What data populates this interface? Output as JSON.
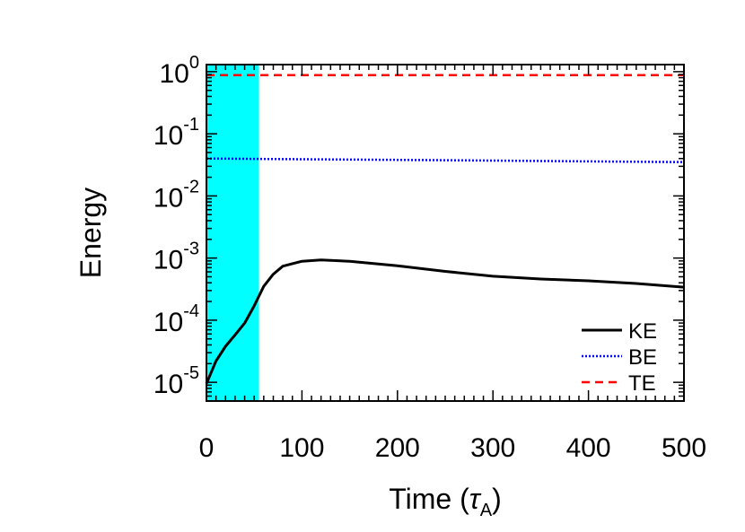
{
  "chart_data": {
    "type": "line",
    "xlabel": "Time (τA)",
    "xlabel_parts": {
      "main": "Time (",
      "symbol": "τ",
      "subscript": "A",
      "close": ")"
    },
    "ylabel": "Energy",
    "xlim": [
      0,
      500
    ],
    "ylim": [
      5e-06,
      1.3
    ],
    "yscale": "log",
    "grid": false,
    "legend_position": "bottom-right",
    "x_ticks": [
      "0",
      "100",
      "200",
      "300",
      "400",
      "500"
    ],
    "y_ticks": [
      {
        "base": "10",
        "exp": "0"
      },
      {
        "base": "10",
        "exp": "-1"
      },
      {
        "base": "10",
        "exp": "-2"
      },
      {
        "base": "10",
        "exp": "-3"
      },
      {
        "base": "10",
        "exp": "-4"
      },
      {
        "base": "10",
        "exp": "-5"
      }
    ],
    "shaded_region": {
      "x_start": 0,
      "x_end": 55,
      "color": "#00ffff"
    },
    "series": [
      {
        "name": "KE",
        "color": "#000000",
        "style": "solid",
        "x": [
          0,
          10,
          20,
          30,
          40,
          50,
          60,
          70,
          80,
          100,
          120,
          150,
          200,
          250,
          300,
          350,
          400,
          450,
          500
        ],
        "y": [
          9.5e-06,
          2.2e-05,
          3.8e-05,
          5.8e-05,
          9e-05,
          0.00017,
          0.00035,
          0.00055,
          0.00074,
          0.00089,
          0.00093,
          0.00089,
          0.00075,
          0.00061,
          0.00051,
          0.00046,
          0.00043,
          0.00039,
          0.00034
        ]
      },
      {
        "name": "BE",
        "color": "#0000ff",
        "style": "dotted",
        "x": [
          0,
          100,
          200,
          300,
          400,
          500
        ],
        "y": [
          0.04,
          0.039,
          0.038,
          0.037,
          0.036,
          0.035
        ]
      },
      {
        "name": "TE",
        "color": "#ff0000",
        "style": "dashed",
        "x": [
          0,
          100,
          200,
          300,
          400,
          500
        ],
        "y": [
          0.88,
          0.88,
          0.88,
          0.88,
          0.88,
          0.88
        ]
      }
    ]
  }
}
